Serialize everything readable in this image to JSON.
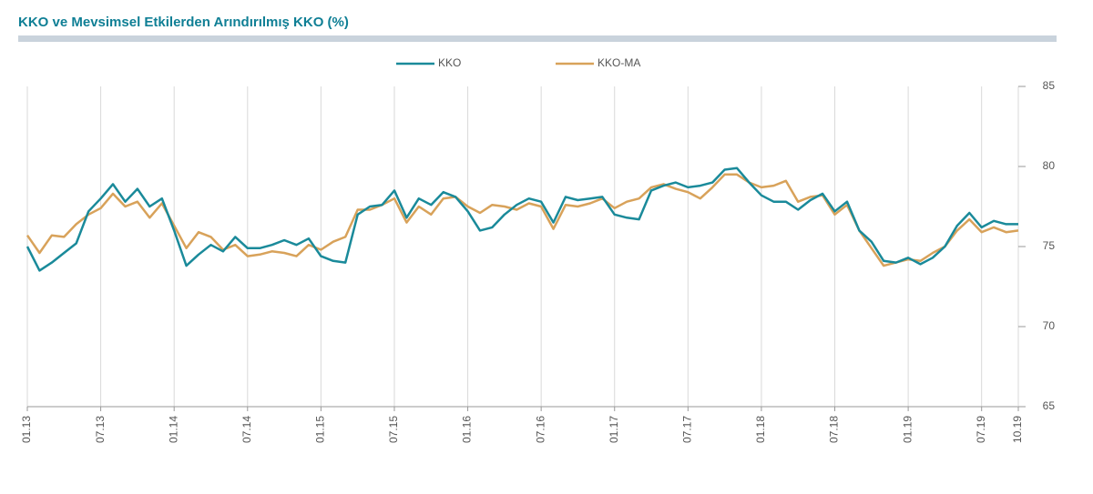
{
  "chart_data": {
    "type": "line",
    "title": "KKO ve Mevsimsel Etkilerden Arındırılmış KKO (%)",
    "categories": [
      "01.13",
      null,
      null,
      null,
      null,
      null,
      "07.13",
      null,
      null,
      null,
      null,
      null,
      "01.14",
      null,
      null,
      null,
      null,
      null,
      "07.14",
      null,
      null,
      null,
      null,
      null,
      "01.15",
      null,
      null,
      null,
      null,
      null,
      "07.15",
      null,
      null,
      null,
      null,
      null,
      "01.16",
      null,
      null,
      null,
      null,
      null,
      "07.16",
      null,
      null,
      null,
      null,
      null,
      "01.17",
      null,
      null,
      null,
      null,
      null,
      "07.17",
      null,
      null,
      null,
      null,
      null,
      "01.18",
      null,
      null,
      null,
      null,
      null,
      "07.18",
      null,
      null,
      null,
      null,
      null,
      "01.19",
      null,
      null,
      null,
      null,
      null,
      "07.19",
      null,
      null,
      "10.19"
    ],
    "series": [
      {
        "name": "KKO",
        "color": "#1a8a9a",
        "values": [
          75.0,
          73.5,
          74.0,
          74.6,
          75.2,
          77.2,
          78.0,
          78.9,
          77.8,
          78.6,
          77.5,
          78.0,
          76.0,
          73.8,
          74.5,
          75.1,
          74.7,
          75.6,
          74.9,
          74.9,
          75.1,
          75.4,
          75.1,
          75.5,
          74.4,
          74.1,
          74.0,
          77.0,
          77.5,
          77.6,
          78.5,
          76.8,
          78.0,
          77.6,
          78.4,
          78.1,
          77.2,
          76.0,
          76.2,
          77.0,
          77.6,
          78.0,
          77.8,
          76.5,
          78.1,
          77.9,
          78.0,
          78.1,
          77.0,
          76.8,
          76.7,
          78.5,
          78.8,
          79.0,
          78.7,
          78.8,
          79.0,
          79.8,
          79.9,
          79.0,
          78.2,
          77.8,
          77.8,
          77.3,
          77.9,
          78.3,
          77.2,
          77.8,
          76.0,
          75.3,
          74.1,
          74.0,
          74.3,
          73.9,
          74.3,
          75.0,
          76.3,
          77.1,
          76.2,
          76.6,
          76.4,
          76.4
        ]
      },
      {
        "name": "KKO-MA",
        "color": "#d8a25a",
        "values": [
          75.7,
          74.6,
          75.7,
          75.6,
          76.4,
          77.0,
          77.4,
          78.3,
          77.5,
          77.8,
          76.8,
          77.7,
          76.3,
          74.9,
          75.9,
          75.6,
          74.8,
          75.1,
          74.4,
          74.5,
          74.7,
          74.6,
          74.4,
          75.1,
          74.8,
          75.3,
          75.6,
          77.3,
          77.3,
          77.6,
          78.0,
          76.5,
          77.5,
          77.0,
          78.0,
          78.1,
          77.5,
          77.1,
          77.6,
          77.5,
          77.3,
          77.7,
          77.5,
          76.1,
          77.6,
          77.5,
          77.7,
          78.0,
          77.4,
          77.8,
          78.0,
          78.7,
          78.9,
          78.6,
          78.4,
          78.0,
          78.7,
          79.5,
          79.5,
          79.0,
          78.7,
          78.8,
          79.1,
          77.8,
          78.1,
          78.2,
          77.0,
          77.6,
          76.0,
          74.9,
          73.8,
          74.0,
          74.2,
          74.1,
          74.6,
          75.0,
          76.0,
          76.7,
          75.9,
          76.2,
          75.9,
          76.0
        ]
      }
    ],
    "ylim": [
      65,
      85
    ],
    "yticks": [
      65,
      70,
      75,
      80,
      85
    ],
    "grid": true,
    "legend": "top"
  }
}
